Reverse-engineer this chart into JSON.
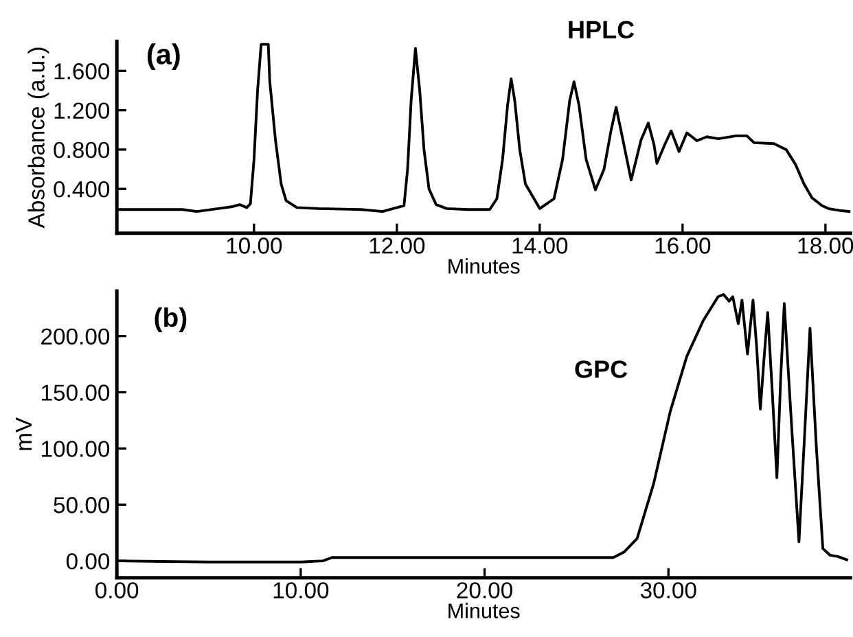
{
  "chart_data": [
    {
      "type": "line",
      "xlabel": "Minutes",
      "ylabel": "Absorbance (a.u.)",
      "annotations": [
        "(a)",
        "HPLC"
      ],
      "grid": false,
      "legend": false,
      "marker": "none",
      "line_style": "solid",
      "xlim": [
        8.08,
        18.35
      ],
      "ylim": [
        -0.05,
        1.9
      ],
      "xticks": [
        {
          "value": 10,
          "label": "10.00"
        },
        {
          "value": 12,
          "label": "12.00"
        },
        {
          "value": 14,
          "label": "14.00"
        },
        {
          "value": 16,
          "label": "16.00"
        },
        {
          "value": 18,
          "label": "18.00"
        }
      ],
      "yticks": [
        {
          "value": 0.4,
          "label": "0.400"
        },
        {
          "value": 0.8,
          "label": "0.800"
        },
        {
          "value": 1.2,
          "label": "1.200"
        },
        {
          "value": 1.6,
          "label": "1.600"
        }
      ],
      "series": [
        {
          "color": "#000000",
          "x": [
            8.08,
            8.6,
            9.0,
            9.2,
            9.5,
            9.7,
            9.8,
            9.9,
            9.95,
            10.0,
            10.05,
            10.1,
            10.12,
            10.2,
            10.22,
            10.3,
            10.38,
            10.45,
            10.6,
            10.9,
            11.5,
            11.8,
            12.0,
            12.1,
            12.15,
            12.2,
            12.26,
            12.32,
            12.38,
            12.45,
            12.55,
            12.7,
            13.0,
            13.3,
            13.4,
            13.48,
            13.55,
            13.6,
            13.65,
            13.72,
            13.8,
            14.0,
            14.2,
            14.32,
            14.42,
            14.48,
            14.55,
            14.65,
            14.78,
            14.9,
            15.0,
            15.07,
            15.15,
            15.28,
            15.42,
            15.52,
            15.6,
            15.64,
            15.75,
            15.84,
            15.95,
            16.06,
            16.2,
            16.34,
            16.5,
            16.75,
            16.9,
            17.0,
            17.28,
            17.45,
            17.58,
            17.7,
            17.81,
            17.95,
            18.04,
            18.2,
            18.34
          ],
          "values": [
            0.19,
            0.19,
            0.19,
            0.17,
            0.2,
            0.22,
            0.24,
            0.21,
            0.25,
            0.7,
            1.4,
            1.87,
            1.87,
            1.87,
            1.5,
            0.9,
            0.45,
            0.28,
            0.21,
            0.2,
            0.19,
            0.17,
            0.21,
            0.23,
            0.6,
            1.3,
            1.83,
            1.4,
            0.8,
            0.4,
            0.24,
            0.2,
            0.19,
            0.19,
            0.3,
            0.7,
            1.25,
            1.52,
            1.3,
            0.8,
            0.45,
            0.2,
            0.3,
            0.7,
            1.3,
            1.49,
            1.25,
            0.7,
            0.39,
            0.6,
            1.0,
            1.23,
            0.95,
            0.49,
            0.9,
            1.07,
            0.85,
            0.66,
            0.85,
            0.99,
            0.78,
            0.97,
            0.89,
            0.93,
            0.91,
            0.94,
            0.94,
            0.87,
            0.86,
            0.8,
            0.65,
            0.45,
            0.31,
            0.23,
            0.2,
            0.18,
            0.17
          ]
        }
      ]
    },
    {
      "type": "line",
      "xlabel": "Minutes",
      "ylabel": "mV",
      "annotations": [
        "(b)",
        "GPC"
      ],
      "grid": false,
      "legend": false,
      "marker": "none",
      "line_style": "solid",
      "xlim": [
        0,
        39.9
      ],
      "ylim": [
        -15,
        240
      ],
      "xticks": [
        {
          "value": 0,
          "label": "0.00"
        },
        {
          "value": 10,
          "label": "10.00"
        },
        {
          "value": 20,
          "label": "20.00"
        },
        {
          "value": 30,
          "label": "30.00"
        }
      ],
      "yticks": [
        {
          "value": 0,
          "label": "0.00"
        },
        {
          "value": 50,
          "label": "50.00"
        },
        {
          "value": 100,
          "label": "100.00"
        },
        {
          "value": 150,
          "label": "150.00"
        },
        {
          "value": 200,
          "label": "200.00"
        }
      ],
      "series": [
        {
          "color": "#000000",
          "x": [
            0,
            5,
            10,
            11.2,
            11.7,
            12.2,
            20,
            27.0,
            27.6,
            28.3,
            29.2,
            30.1,
            31.0,
            31.9,
            32.7,
            33.0,
            33.3,
            33.5,
            33.8,
            34.0,
            34.3,
            34.6,
            34.8,
            35.0,
            35.2,
            35.4,
            35.65,
            35.9,
            36.1,
            36.3,
            36.7,
            37.1,
            37.4,
            37.7,
            38.05,
            38.4,
            38.8,
            39.2,
            39.7
          ],
          "values": [
            0,
            -1,
            -1,
            0,
            3,
            3,
            3,
            3,
            8,
            20,
            69,
            133,
            182,
            214,
            235,
            237,
            231,
            235,
            211,
            232,
            184,
            232,
            190,
            135,
            180,
            221,
            150,
            74,
            160,
            229,
            120,
            17,
            110,
            207,
            100,
            11,
            5,
            4,
            1
          ]
        }
      ]
    }
  ]
}
